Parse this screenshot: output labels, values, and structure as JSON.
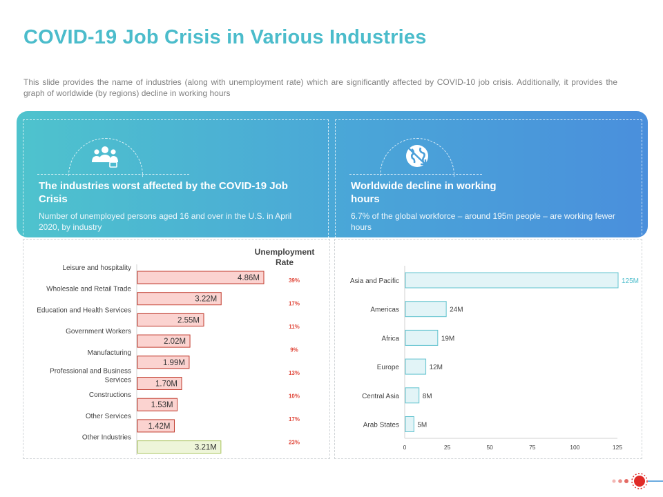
{
  "title": "COVID-19 Job Crisis in Various Industries",
  "description": "This slide provides  the name of industries  (along with unemployment  rate) which are significantly affected  by COVID-10  job crisis. Additionally, it provides  the graph of worldwide  (by regions)  decline in working  hours",
  "left_panel": {
    "icon": "people-group-icon",
    "title": "The industries worst affected by the COVID-19 Job Crisis",
    "text": "Number of unemployed persons aged 16 and over  in the U.S. in April 2020, by industry"
  },
  "right_panel": {
    "icon": "globe-down-arrow-icon",
    "title": "Worldwide decline in working hours",
    "text": "6.7% of the global workforce  – around 195m people – are working fewer hours"
  },
  "colors": {
    "title": "#4bbccb",
    "bar_red_fill": "#fbd3d0",
    "bar_red_stroke": "#c0392b",
    "bar_green_fill": "#eef5d9",
    "bar_green_stroke": "#a8c35a",
    "rate_text": "#e0473a",
    "bar_blue_fill": "#e2f4f7",
    "bar_blue_stroke": "#62c3cf",
    "accent_dot": "#e02b27"
  },
  "chart_data": [
    {
      "type": "bar",
      "orientation": "horizontal",
      "categories": [
        "Leisure and hospitality",
        "Wholesale and Retail Trade",
        "Education and Health Services",
        "Government Workers",
        "Manufacturing",
        "Professional and Business Services",
        "Constructions",
        "Other Services",
        "Other Industries"
      ],
      "category_lines": [
        [
          "Leisure and hospitality"
        ],
        [
          "Wholesale and Retail Trade"
        ],
        [
          "Education and Health Services"
        ],
        [
          "Government Workers"
        ],
        [
          "Manufacturing"
        ],
        [
          "Professional and Business",
          "Services"
        ],
        [
          "Constructions"
        ],
        [
          "Other Services"
        ],
        [
          "Other Industries"
        ]
      ],
      "values": [
        4.86,
        3.22,
        2.55,
        2.02,
        1.99,
        1.7,
        1.53,
        1.42,
        3.21
      ],
      "value_labels": [
        "4.86M",
        "3.22M",
        "2.55M",
        "2.02M",
        "1.99M",
        "1.70M",
        "1.53M",
        "1.42M",
        "3.21M"
      ],
      "unemployment_rate_header": "Unemployment Rate",
      "unemployment_rates": [
        "39%",
        "17%",
        "11%",
        "9%",
        "13%",
        "10%",
        "17%",
        "23%"
      ],
      "highlight": "Other Industries",
      "xlim": [
        0,
        5.5
      ]
    },
    {
      "type": "bar",
      "orientation": "horizontal",
      "categories": [
        "Asia and Pacific",
        "Americas",
        "Africa",
        "Europe",
        "Central Asia",
        "Arab States"
      ],
      "values": [
        125,
        24,
        19,
        12,
        8,
        5
      ],
      "value_labels": [
        "125M",
        "24M",
        "19M",
        "12M",
        "8M",
        "5M"
      ],
      "xticks": [
        "0",
        "25",
        "50",
        "75",
        "100",
        "125"
      ],
      "xlim": [
        0,
        125
      ]
    }
  ]
}
